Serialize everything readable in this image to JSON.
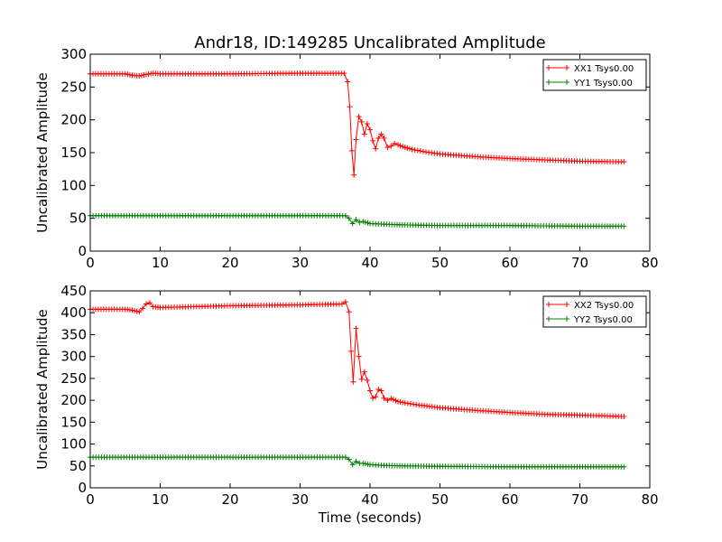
{
  "chart_data": [
    {
      "type": "line",
      "title": "Andr18, ID:149285 Uncalibrated Amplitude",
      "xlabel": "",
      "ylabel": "Uncalibrated Amplitude",
      "xlim": [
        0,
        80
      ],
      "ylim": [
        0,
        300
      ],
      "xticks": [
        0,
        10,
        20,
        30,
        40,
        50,
        60,
        70,
        80
      ],
      "yticks": [
        0,
        50,
        100,
        150,
        200,
        250,
        300
      ],
      "grid": false,
      "legend_position": "top-right",
      "series": [
        {
          "name": "XX1 Tsys0.00",
          "color": "#ff0000",
          "marker": "+",
          "x": [
            0,
            5,
            6,
            7,
            8,
            9,
            10,
            20,
            30,
            36.3,
            36.8,
            37.1,
            37.4,
            37.7,
            38.0,
            38.4,
            38.8,
            39.2,
            39.6,
            40.0,
            40.4,
            40.8,
            41.2,
            41.6,
            42.0,
            42.5,
            43.0,
            43.5,
            44.0,
            45.0,
            46.0,
            48.0,
            50.0,
            55.0,
            60.0,
            65.0,
            70.0,
            76.3
          ],
          "y": [
            270,
            270,
            268,
            267,
            269,
            271,
            270,
            270,
            271,
            271,
            258,
            220,
            153,
            116,
            170,
            205,
            197,
            178,
            194,
            185,
            168,
            156,
            172,
            178,
            172,
            158,
            160,
            164,
            162,
            158,
            155,
            151,
            148,
            144,
            141,
            139,
            137,
            136
          ]
        },
        {
          "name": "YY1 Tsys0.00",
          "color": "#008000",
          "marker": "+",
          "x": [
            0,
            10,
            20,
            30,
            36.5,
            37.0,
            37.5,
            38.0,
            38.5,
            39.0,
            40.0,
            42.0,
            45.0,
            50.0,
            60.0,
            70.0,
            76.3
          ],
          "y": [
            54,
            54,
            54,
            54,
            54,
            50,
            42,
            48,
            44,
            45,
            42,
            41,
            40,
            39,
            39,
            38,
            38
          ]
        }
      ]
    },
    {
      "type": "line",
      "title": "",
      "xlabel": "Time (seconds)",
      "ylabel": "Uncalibrated Amplitude",
      "xlim": [
        0,
        80
      ],
      "ylim": [
        0,
        450
      ],
      "xticks": [
        0,
        10,
        20,
        30,
        40,
        50,
        60,
        70,
        80
      ],
      "yticks": [
        0,
        50,
        100,
        150,
        200,
        250,
        300,
        350,
        400,
        450
      ],
      "grid": false,
      "legend_position": "top-right",
      "series": [
        {
          "name": "XX2 Tsys0.00",
          "color": "#ff0000",
          "marker": "+",
          "x": [
            0,
            5,
            6,
            7,
            7.5,
            8,
            8.5,
            9,
            10,
            20,
            30,
            36.0,
            36.5,
            37.0,
            37.3,
            37.6,
            38.0,
            38.4,
            38.8,
            39.2,
            39.6,
            40.0,
            40.4,
            40.8,
            41.2,
            41.6,
            42.0,
            42.5,
            43.0,
            44.0,
            45.0,
            47.0,
            50.0,
            55.0,
            60.0,
            65.0,
            70.0,
            76.3
          ],
          "y": [
            408,
            408,
            406,
            402,
            410,
            420,
            423,
            414,
            412,
            416,
            418,
            420,
            425,
            402,
            312,
            242,
            364,
            300,
            248,
            265,
            246,
            222,
            205,
            208,
            225,
            222,
            205,
            200,
            204,
            197,
            194,
            189,
            183,
            177,
            172,
            168,
            166,
            163
          ]
        },
        {
          "name": "YY2 Tsys0.00",
          "color": "#008000",
          "marker": "+",
          "x": [
            0,
            10,
            20,
            30,
            36.5,
            37.0,
            37.5,
            38.0,
            38.5,
            39.0,
            40.0,
            42.0,
            45.0,
            50.0,
            60.0,
            70.0,
            76.3
          ],
          "y": [
            70,
            70,
            70,
            70,
            70,
            65,
            53,
            60,
            56,
            56,
            53,
            51,
            50,
            49,
            48,
            48,
            48
          ]
        }
      ]
    }
  ]
}
